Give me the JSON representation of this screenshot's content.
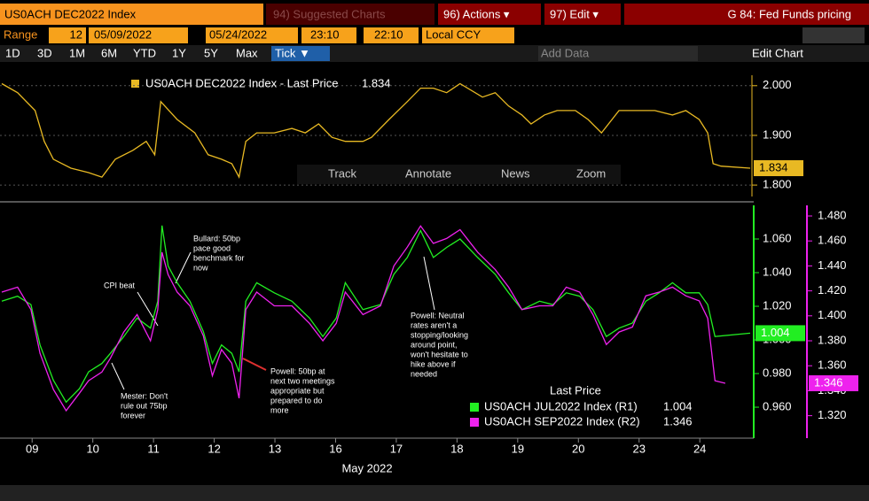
{
  "ui": {
    "security": "US0ACH DEC2022 Index",
    "suggested": "94) Suggested Charts",
    "actions": "96) Actions ▾",
    "edit": "97) Edit ▾",
    "page_title": "G 84: Fed Funds pricing",
    "range_label": "Range",
    "range_value": "12",
    "start_date": "05/09/2022",
    "end_date": "05/24/2022",
    "start_time": "23:10",
    "end_time": "22:10",
    "currency": "Local CCY",
    "periods": [
      "1D",
      "3D",
      "1M",
      "6M",
      "YTD",
      "1Y",
      "5Y",
      "Max",
      "Tick ▼"
    ],
    "add_data": "Add Data",
    "edit_chart": "Edit Chart",
    "tools": [
      "Track",
      "Annotate",
      "News",
      "Zoom"
    ]
  },
  "chart_data": [
    {
      "type": "line",
      "grid": true,
      "xlim": [
        0,
        12.33
      ],
      "ylim": [
        1.777,
        2.021
      ],
      "yticks": [
        {
          "value": 2.0,
          "label": "2.000"
        },
        {
          "value": 1.9,
          "label": "1.900"
        },
        {
          "value": 1.8,
          "label": "1.800"
        }
      ],
      "series": [
        {
          "name": "US0ACH DEC2022 Index - Last Price",
          "color": "#e8b923",
          "x": [
            0,
            0.26,
            0.55,
            0.7,
            0.85,
            1.14,
            1.43,
            1.65,
            1.87,
            2.16,
            2.38,
            2.52,
            2.62,
            2.89,
            3.18,
            3.4,
            3.62,
            3.79,
            3.91,
            4.02,
            4.2,
            4.49,
            4.78,
            5.0,
            5.22,
            5.44,
            5.66,
            5.95,
            6.09,
            6.38,
            6.68,
            6.9,
            7.11,
            7.33,
            7.55,
            7.92,
            8.13,
            8.35,
            8.57,
            8.72,
            8.94,
            9.15,
            9.45,
            9.66,
            9.88,
            10.17,
            10.47,
            10.76,
            11.05,
            11.27,
            11.49,
            11.63,
            11.72,
            11.85,
            12.33
          ],
          "values": [
            2.004,
            1.986,
            1.95,
            1.888,
            1.852,
            1.834,
            1.825,
            1.816,
            1.852,
            1.87,
            1.888,
            1.861,
            1.968,
            1.932,
            1.905,
            1.861,
            1.852,
            1.843,
            1.816,
            1.888,
            1.905,
            1.905,
            1.914,
            1.905,
            1.923,
            1.896,
            1.888,
            1.888,
            1.896,
            1.932,
            1.968,
            1.995,
            1.995,
            1.986,
            2.004,
            1.977,
            1.986,
            1.959,
            1.941,
            1.923,
            1.941,
            1.95,
            1.95,
            1.932,
            1.905,
            1.95,
            1.95,
            1.95,
            1.941,
            1.95,
            1.932,
            1.905,
            1.843,
            1.838,
            1.834
          ]
        }
      ]
    },
    {
      "type": "line",
      "xlim": [
        0,
        12.33
      ],
      "ylim": [
        0.9416,
        1.08
      ],
      "y2lim": [
        1.302,
        1.4885
      ],
      "xlabel": "May 2022",
      "legend_title": "Last Price",
      "legend": "lower right",
      "xticks": [
        {
          "value": 0.5,
          "label": "09"
        },
        {
          "value": 1.5,
          "label": "10"
        },
        {
          "value": 2.5,
          "label": "11"
        },
        {
          "value": 3.5,
          "label": "12"
        },
        {
          "value": 4.5,
          "label": "13"
        },
        {
          "value": 5.5,
          "label": "16"
        },
        {
          "value": 6.5,
          "label": "17"
        },
        {
          "value": 7.5,
          "label": "18"
        },
        {
          "value": 8.5,
          "label": "19"
        },
        {
          "value": 9.5,
          "label": "20"
        },
        {
          "value": 10.5,
          "label": "23"
        },
        {
          "value": 11.5,
          "label": "24"
        }
      ],
      "yticks": [
        {
          "value": 1.06,
          "label": "1.060"
        },
        {
          "value": 1.04,
          "label": "1.040"
        },
        {
          "value": 1.02,
          "label": "1.020"
        },
        {
          "value": 1.0,
          "label": "1.000"
        },
        {
          "value": 0.98,
          "label": "0.980"
        },
        {
          "value": 0.96,
          "label": "0.960"
        }
      ],
      "y2ticks": [
        {
          "value": 1.48,
          "label": "1.480"
        },
        {
          "value": 1.46,
          "label": "1.460"
        },
        {
          "value": 1.44,
          "label": "1.440"
        },
        {
          "value": 1.42,
          "label": "1.420"
        },
        {
          "value": 1.4,
          "label": "1.400"
        },
        {
          "value": 1.38,
          "label": "1.380"
        },
        {
          "value": 1.36,
          "label": "1.360"
        },
        {
          "value": 1.34,
          "label": "1.340"
        },
        {
          "value": 1.32,
          "label": "1.320"
        }
      ],
      "annotations": [
        [
          "CPI beat"
        ],
        [
          "Bullard: 50bp",
          "pace good",
          "benchmark for",
          "now"
        ],
        [
          "Mester: Don't",
          "rule out 75bp",
          "forever"
        ],
        [
          "Powell: 50bp at",
          "next two meetings",
          "appropriate but",
          "prepared to do",
          "more"
        ],
        [
          "Powell: Neutral",
          "rates aren't a",
          "stopping/looking",
          "around point,",
          "won't hesitate to",
          "hike above if",
          "needed"
        ]
      ],
      "series": [
        {
          "name": "US0ACH JUL2022 Index  (R1)",
          "color": "#22ee22",
          "x": [
            0,
            0.26,
            0.48,
            0.63,
            0.85,
            1.06,
            1.28,
            1.43,
            1.65,
            1.79,
            2.01,
            2.23,
            2.45,
            2.57,
            2.64,
            2.74,
            2.89,
            3.1,
            3.32,
            3.47,
            3.62,
            3.79,
            3.91,
            4.02,
            4.2,
            4.49,
            4.78,
            5.07,
            5.29,
            5.51,
            5.66,
            5.95,
            6.24,
            6.46,
            6.68,
            6.9,
            7.11,
            7.33,
            7.55,
            7.84,
            8.13,
            8.35,
            8.57,
            8.86,
            9.08,
            9.3,
            9.52,
            9.74,
            9.96,
            10.17,
            10.39,
            10.61,
            10.83,
            11.05,
            11.27,
            11.49,
            11.63,
            11.75,
            12.33
          ],
          "values": [
            1.023,
            1.026,
            1.021,
            0.997,
            0.976,
            0.963,
            0.971,
            0.981,
            0.986,
            0.992,
            1.002,
            1.013,
            1.007,
            1.023,
            1.068,
            1.044,
            1.034,
            1.023,
            1.005,
            0.986,
            0.997,
            0.992,
            0.981,
            1.023,
            1.034,
            1.028,
            1.023,
            1.013,
            1.002,
            1.013,
            1.034,
            1.018,
            1.021,
            1.039,
            1.049,
            1.065,
            1.049,
            1.055,
            1.06,
            1.049,
            1.039,
            1.028,
            1.018,
            1.023,
            1.021,
            1.028,
            1.026,
            1.018,
            1.002,
            1.007,
            1.01,
            1.023,
            1.028,
            1.034,
            1.028,
            1.028,
            1.021,
            1.002,
            1.004
          ]
        },
        {
          "name": "US0ACH SEP2022 Index  (R2)",
          "color": "#ee22ee",
          "axis": "y2",
          "x": [
            0,
            0.26,
            0.48,
            0.63,
            0.85,
            1.06,
            1.28,
            1.43,
            1.65,
            1.79,
            2.01,
            2.23,
            2.45,
            2.57,
            2.64,
            2.74,
            2.89,
            3.1,
            3.32,
            3.47,
            3.62,
            3.79,
            3.91,
            4.02,
            4.2,
            4.49,
            4.78,
            5.07,
            5.29,
            5.51,
            5.66,
            5.95,
            6.24,
            6.46,
            6.68,
            6.9,
            7.11,
            7.33,
            7.55,
            7.84,
            8.13,
            8.35,
            8.57,
            8.86,
            9.08,
            9.3,
            9.52,
            9.74,
            9.96,
            10.17,
            10.39,
            10.61,
            10.83,
            11.05,
            11.27,
            11.49,
            11.63,
            11.75,
            11.92
          ],
          "values": [
            1.419,
            1.423,
            1.405,
            1.37,
            1.341,
            1.324,
            1.338,
            1.348,
            1.355,
            1.366,
            1.387,
            1.401,
            1.38,
            1.405,
            1.451,
            1.433,
            1.419,
            1.408,
            1.384,
            1.352,
            1.373,
            1.362,
            1.334,
            1.405,
            1.419,
            1.408,
            1.408,
            1.394,
            1.38,
            1.394,
            1.419,
            1.401,
            1.408,
            1.44,
            1.455,
            1.472,
            1.458,
            1.462,
            1.469,
            1.451,
            1.437,
            1.423,
            1.405,
            1.408,
            1.408,
            1.423,
            1.419,
            1.401,
            1.377,
            1.387,
            1.391,
            1.416,
            1.419,
            1.423,
            1.416,
            1.412,
            1.398,
            1.348,
            1.346
          ]
        }
      ]
    }
  ]
}
